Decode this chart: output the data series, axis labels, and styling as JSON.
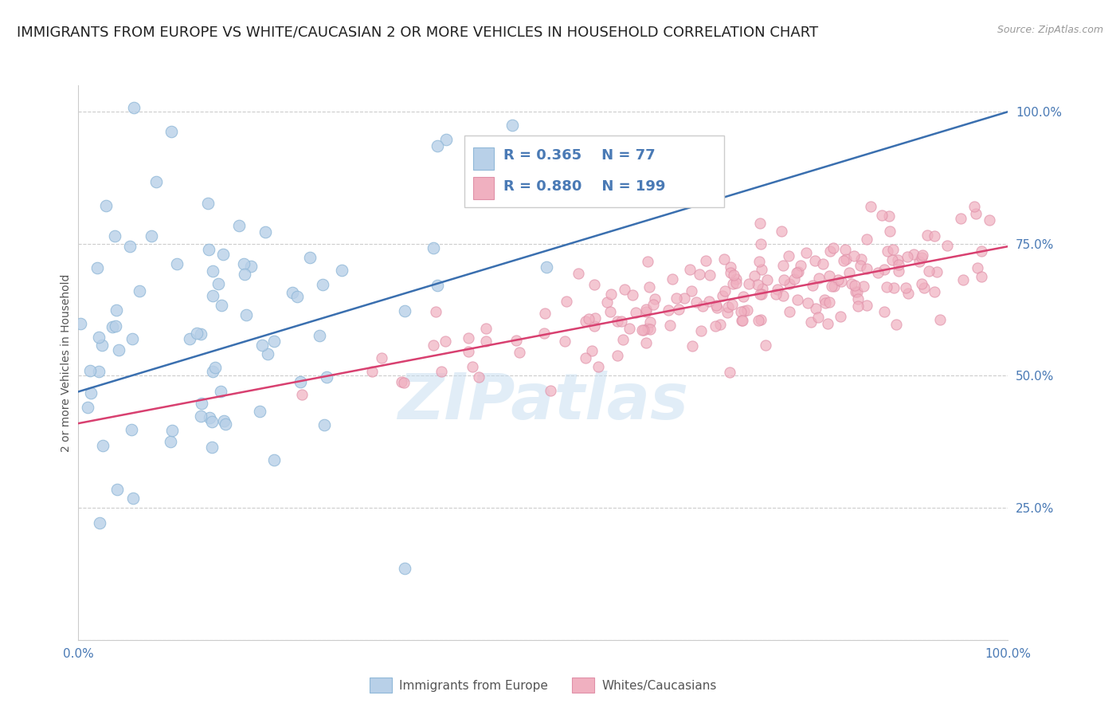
{
  "title": "IMMIGRANTS FROM EUROPE VS WHITE/CAUCASIAN 2 OR MORE VEHICLES IN HOUSEHOLD CORRELATION CHART",
  "source": "Source: ZipAtlas.com",
  "ylabel": "2 or more Vehicles in Household",
  "xlim": [
    0.0,
    1.0
  ],
  "ylim": [
    0.0,
    1.05
  ],
  "ytick_positions": [
    0.0,
    0.25,
    0.5,
    0.75,
    1.0
  ],
  "ytick_labels": [
    "",
    "25.0%",
    "50.0%",
    "75.0%",
    "100.0%"
  ],
  "xtick_positions": [
    0.0,
    1.0
  ],
  "xtick_labels": [
    "0.0%",
    "100.0%"
  ],
  "blue_R": 0.365,
  "blue_N": 77,
  "pink_R": 0.88,
  "pink_N": 199,
  "blue_color_fill": "#b8d0e8",
  "blue_color_edge": "#90b8d8",
  "pink_color_fill": "#f0b0c0",
  "pink_color_edge": "#e090a8",
  "blue_line_color": "#3a6faf",
  "pink_line_color": "#d84070",
  "legend_label_blue": "Immigrants from Europe",
  "legend_label_pink": "Whites/Caucasians",
  "watermark": "ZIPatlas",
  "background_color": "#ffffff",
  "grid_color": "#cccccc",
  "title_fontsize": 13,
  "axis_label_fontsize": 10,
  "tick_fontsize": 11,
  "tick_color": "#4a7ab5",
  "blue_seed": 12,
  "pink_seed": 5,
  "blue_line_x0": 0.0,
  "blue_line_y0": 0.47,
  "blue_line_x1": 1.0,
  "blue_line_y1": 1.0,
  "pink_line_x0": 0.0,
  "pink_line_y0": 0.41,
  "pink_line_x1": 1.0,
  "pink_line_y1": 0.745
}
